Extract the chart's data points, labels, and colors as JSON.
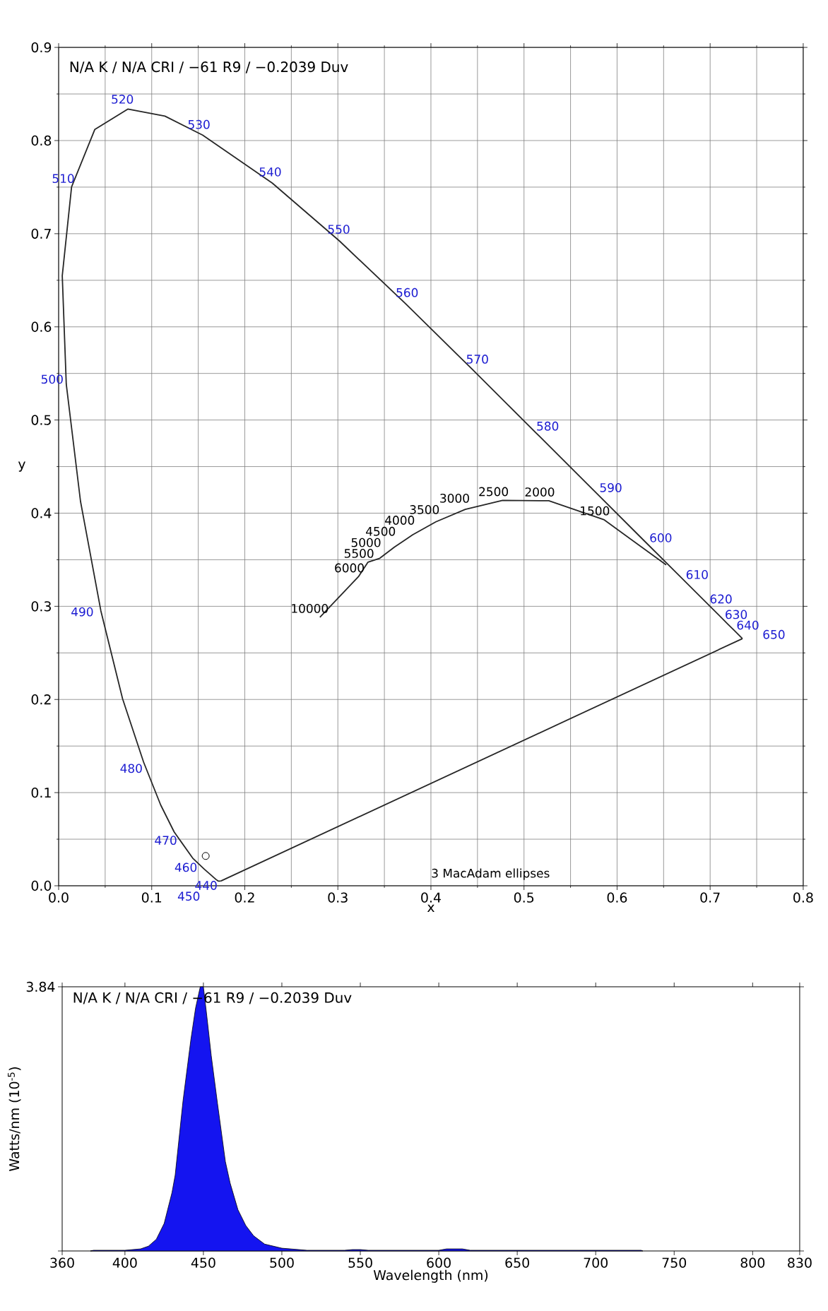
{
  "chart_data": [
    {
      "type": "line",
      "title": "N/A K / N/A CRI / −61 R9 / −0.2039 Duv",
      "xlabel": "x",
      "ylabel": "y",
      "xlim": [
        0,
        0.8
      ],
      "ylim": [
        0,
        0.9
      ],
      "xticks": [
        {
          "value": 0,
          "label": "0.0"
        },
        0.1,
        0.2,
        0.3,
        0.4,
        0.5,
        0.6,
        0.7,
        0.8
      ],
      "yticks": [
        {
          "value": 0,
          "label": "0.0"
        },
        0.1,
        0.2,
        0.3,
        0.4,
        0.5,
        0.6,
        0.7,
        0.8,
        0.9
      ],
      "grid": true,
      "series": [
        {
          "type": "line",
          "color": "#262626",
          "x": [
            0.1741,
            0.1714,
            0.1689,
            0.1644,
            0.1566,
            0.144,
            0.1241,
            0.1096,
            0.0913,
            0.0687,
            0.0454,
            0.0235,
            0.0082,
            0.0039,
            0.0139,
            0.0389,
            0.0743,
            0.1142,
            0.1547,
            0.2296,
            0.3016,
            0.3731,
            0.4441,
            0.5125,
            0.5752,
            0.627,
            0.6658,
            0.6915,
            0.7079,
            0.719,
            0.726,
            0.7347
          ],
          "values": [
            0.005,
            0.0051,
            0.0069,
            0.0109,
            0.0177,
            0.0297,
            0.0578,
            0.0868,
            0.1327,
            0.2007,
            0.295,
            0.4127,
            0.5384,
            0.6548,
            0.7502,
            0.812,
            0.8338,
            0.8262,
            0.8059,
            0.7543,
            0.6923,
            0.6245,
            0.5547,
            0.4866,
            0.4242,
            0.3725,
            0.334,
            0.3083,
            0.292,
            0.2809,
            0.274,
            0.2653
          ]
        },
        {
          "type": "line",
          "color": "#262626",
          "x": [
            0.1741,
            0.7347
          ],
          "values": [
            0.005,
            0.2653
          ]
        },
        {
          "type": "line",
          "color": "#262626",
          "x": [
            0.2807,
            0.3221,
            0.3324,
            0.3451,
            0.3608,
            0.3805,
            0.4053,
            0.4369,
            0.477,
            0.5266,
            0.5857,
            0.6528
          ],
          "values": [
            0.2883,
            0.3318,
            0.3474,
            0.3516,
            0.3636,
            0.3768,
            0.3907,
            0.4041,
            0.4137,
            0.4133,
            0.3931,
            0.3444
          ]
        },
        {
          "type": "scatter",
          "color": "#ffffff",
          "x": [
            0.158
          ],
          "values": [
            0.032
          ]
        }
      ],
      "annotations": [
        {
          "text": "440",
          "x": 0.1644,
          "y": 0.0109
        },
        {
          "text": "450",
          "x": 0.1566,
          "y": 0.0177
        },
        {
          "text": "460",
          "x": 0.144,
          "y": 0.0297
        },
        {
          "text": "470",
          "x": 0.1241,
          "y": 0.0578
        },
        {
          "text": "480",
          "x": 0.0913,
          "y": 0.1327
        },
        {
          "text": "490",
          "x": 0.0454,
          "y": 0.295
        },
        {
          "text": "500",
          "x": 0.0082,
          "y": 0.5384
        },
        {
          "text": "510",
          "x": 0.0139,
          "y": 0.7502
        },
        {
          "text": "520",
          "x": 0.0743,
          "y": 0.8338
        },
        {
          "text": "530",
          "x": 0.1547,
          "y": 0.8059
        },
        {
          "text": "540",
          "x": 0.2296,
          "y": 0.7543
        },
        {
          "text": "550",
          "x": 0.3016,
          "y": 0.6923
        },
        {
          "text": "560",
          "x": 0.3731,
          "y": 0.6245
        },
        {
          "text": "570",
          "x": 0.4441,
          "y": 0.5547
        },
        {
          "text": "580",
          "x": 0.5125,
          "y": 0.4866
        },
        {
          "text": "590",
          "x": 0.5752,
          "y": 0.4242
        },
        {
          "text": "600",
          "x": 0.627,
          "y": 0.3725
        },
        {
          "text": "610",
          "x": 0.6658,
          "y": 0.334
        },
        {
          "text": "620",
          "x": 0.6915,
          "y": 0.3083
        },
        {
          "text": "630",
          "x": 0.7079,
          "y": 0.292
        },
        {
          "text": "640",
          "x": 0.719,
          "y": 0.2809
        },
        {
          "text": "650",
          "x": 0.726,
          "y": 0.274
        },
        {
          "text": "10000",
          "x": 0.2807,
          "y": 0.2883
        },
        {
          "text": "6000",
          "x": 0.3221,
          "y": 0.3318
        },
        {
          "text": "5500",
          "x": 0.3324,
          "y": 0.3474
        },
        {
          "text": "5000",
          "x": 0.3451,
          "y": 0.3516
        },
        {
          "text": "4500",
          "x": 0.3608,
          "y": 0.3636
        },
        {
          "text": "4000",
          "x": 0.3805,
          "y": 0.3768
        },
        {
          "text": "3500",
          "x": 0.4053,
          "y": 0.3907
        },
        {
          "text": "3000",
          "x": 0.4369,
          "y": 0.4041
        },
        {
          "text": "2500",
          "x": 0.477,
          "y": 0.4137
        },
        {
          "text": "2000",
          "x": 0.5266,
          "y": 0.4133
        },
        {
          "text": "1500",
          "x": 0.5857,
          "y": 0.3931
        },
        "3  MacAdam ellipses"
      ]
    },
    {
      "type": "area",
      "title": "N/A K / N/A CRI / −61 R9 / −0.2039 Duv",
      "xlabel": "Wavelength (nm)",
      "ylabel": "Watts/nm (10$^{-5}$)",
      "xlim": [
        360,
        830
      ],
      "ylim": [
        0,
        3.84
      ],
      "xticks": [
        360,
        400,
        450,
        500,
        550,
        600,
        650,
        700,
        750,
        800,
        830
      ],
      "yticks": [
        {
          "value": 0,
          "label": null
        },
        3.84
      ],
      "x": [
        378,
        380,
        400,
        410,
        415,
        420,
        425,
        430,
        432,
        437,
        442,
        445,
        448,
        450,
        452,
        455,
        459,
        464,
        467,
        472,
        477,
        482,
        489,
        500,
        516,
        540,
        545,
        550,
        555,
        600,
        605,
        615,
        620,
        700,
        729,
        730
      ],
      "values": [
        0,
        0.01,
        0.01,
        0.03,
        0.07,
        0.17,
        0.4,
        0.85,
        1.1,
        2.18,
        3.07,
        3.53,
        3.84,
        3.84,
        3.45,
        2.84,
        2.14,
        1.3,
        0.99,
        0.6,
        0.37,
        0.22,
        0.1,
        0.04,
        0.01,
        0.01,
        0.02,
        0.02,
        0.01,
        0.01,
        0.03,
        0.03,
        0.01,
        0.01,
        0.01,
        0
      ],
      "color": "#1414f0"
    }
  ]
}
